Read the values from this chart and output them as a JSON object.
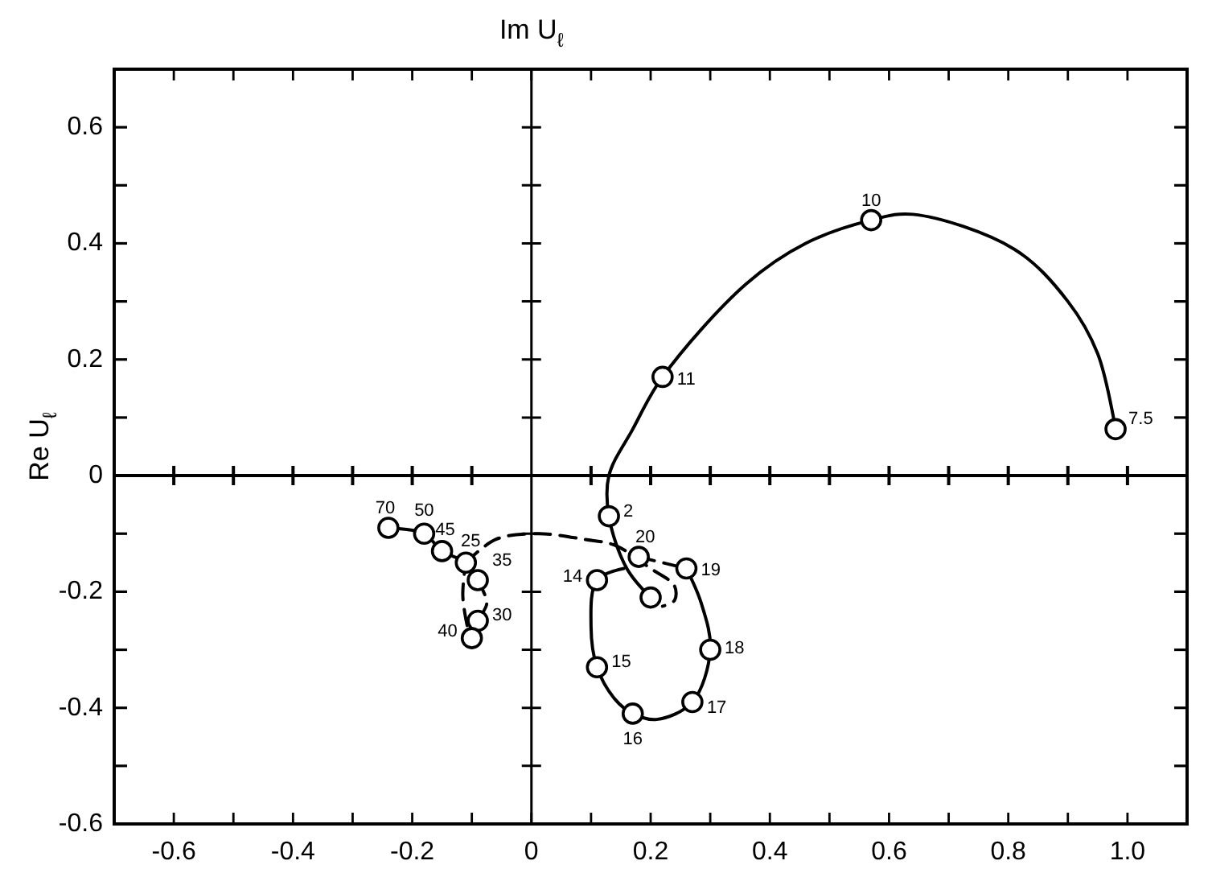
{
  "chart_data": {
    "type": "line",
    "title": "Im U$_{ℓ}$",
    "ylabel": "Re U$_{ℓ}$",
    "xlim": [
      -0.7,
      1.1
    ],
    "ylim": [
      -0.6,
      0.7
    ],
    "xticks": [
      -0.6,
      {
        "value": -0.5,
        "label": null
      },
      -0.4,
      {
        "value": -0.3,
        "label": null
      },
      -0.2,
      {
        "value": -0.1,
        "label": null
      },
      0,
      {
        "value": 0.1,
        "label": null
      },
      0.2,
      {
        "value": 0.3,
        "label": null
      },
      0.4,
      {
        "value": 0.5,
        "label": null
      },
      0.6,
      {
        "value": 0.7,
        "label": null
      },
      0.8,
      {
        "value": 0.9,
        "label": null
      },
      {
        "value": 1,
        "label": "1.0"
      }
    ],
    "yticks": [
      0.6,
      {
        "value": 0.5,
        "label": null
      },
      0.4,
      {
        "value": 0.3,
        "label": null
      },
      0.2,
      {
        "value": 0.1,
        "label": null
      },
      0,
      {
        "value": -0.1,
        "label": null
      },
      -0.2,
      {
        "value": -0.3,
        "label": null
      },
      -0.4,
      {
        "value": -0.5,
        "label": null
      },
      -0.6
    ],
    "ref_lines": [
      {
        "axis": "x",
        "value": 0
      },
      {
        "axis": "y",
        "value": 0
      }
    ],
    "series": [
      {
        "type": "line",
        "color": "#000000",
        "line_style": "solid",
        "marker": "none",
        "x": [
          0.98,
          0.95,
          0.9,
          0.81,
          0.64,
          0.57,
          0.46,
          0.36,
          0.22,
          0.17,
          0.13,
          0.13,
          0.16,
          0.2
        ],
        "values": [
          0.08,
          0.21,
          0.3,
          0.39,
          0.45,
          0.44,
          0.4,
          0.33,
          0.17,
          0.08,
          0,
          -0.07,
          -0.16,
          -0.21
        ]
      },
      {
        "type": "line",
        "color": "#000000",
        "line_style": "solid",
        "marker": "none",
        "x": [
          0.155,
          0.11,
          0.1,
          0.11,
          0.14,
          0.17,
          0.21,
          0.27,
          0.3,
          0.285,
          0.26
        ],
        "values": [
          -0.16,
          -0.18,
          -0.26,
          -0.33,
          -0.385,
          -0.41,
          -0.42,
          -0.39,
          -0.3,
          -0.22,
          -0.16
        ]
      },
      {
        "type": "line",
        "color": "#000000",
        "line_style": "dashed",
        "marker": "none",
        "x": [
          0.18,
          0.26
        ],
        "values": [
          -0.14,
          -0.16
        ]
      },
      {
        "type": "line",
        "color": "#000000",
        "line_style": "dashed",
        "marker": "none",
        "x": [
          -0.11,
          -0.06,
          0.01,
          0.09,
          0.14,
          0.2,
          0.24,
          0.24,
          0.22
        ],
        "values": [
          -0.15,
          -0.11,
          -0.1,
          -0.11,
          -0.12,
          -0.16,
          -0.19,
          -0.215,
          -0.225
        ]
      },
      {
        "type": "line",
        "color": "#000000",
        "line_style": "solid",
        "marker": "none",
        "x": [
          -0.24,
          -0.18,
          -0.15,
          -0.11,
          -0.09
        ],
        "values": [
          -0.09,
          -0.1,
          -0.13,
          -0.15,
          -0.18
        ]
      },
      {
        "type": "line",
        "color": "#000000",
        "line_style": "dashed",
        "marker": "none",
        "x": [
          -0.09,
          -0.075,
          -0.09,
          -0.1,
          -0.115,
          -0.11
        ],
        "values": [
          -0.18,
          -0.22,
          -0.25,
          -0.28,
          -0.21,
          -0.15
        ]
      },
      {
        "type": "scatter",
        "color": "#000000",
        "marker": "circle",
        "x": [
          0.98,
          0.57,
          0.22,
          0.13,
          0.2,
          0.11,
          0.11,
          0.17,
          0.27,
          0.3,
          0.26,
          0.18,
          -0.11,
          -0.09,
          -0.09,
          -0.1,
          -0.15,
          -0.18,
          -0.24
        ],
        "values": [
          0.08,
          0.44,
          0.17,
          -0.07,
          -0.21,
          -0.18,
          -0.33,
          -0.41,
          -0.39,
          -0.3,
          -0.16,
          -0.14,
          -0.15,
          -0.18,
          -0.25,
          -0.28,
          -0.13,
          -0.1,
          -0.09
        ]
      }
    ],
    "annotations": [
      {
        "text": "7.5",
        "x": 0.98,
        "y": 0.08
      },
      {
        "text": "10",
        "x": 0.57,
        "y": 0.44
      },
      {
        "text": "11",
        "x": 0.22,
        "y": 0.17
      },
      {
        "text": "2",
        "x": 0.13,
        "y": -0.07
      },
      {
        "text": "14",
        "x": 0.11,
        "y": -0.18
      },
      {
        "text": "15",
        "x": 0.11,
        "y": -0.33
      },
      {
        "text": "16",
        "x": 0.17,
        "y": -0.41
      },
      {
        "text": "17",
        "x": 0.27,
        "y": -0.39
      },
      {
        "text": "18",
        "x": 0.3,
        "y": -0.3
      },
      {
        "text": "19",
        "x": 0.26,
        "y": -0.16
      },
      {
        "text": "20",
        "x": 0.18,
        "y": -0.14
      },
      {
        "text": "25",
        "x": -0.11,
        "y": -0.15
      },
      {
        "text": "35",
        "x": -0.09,
        "y": -0.18
      },
      {
        "text": "30",
        "x": -0.09,
        "y": -0.25
      },
      {
        "text": "40",
        "x": -0.1,
        "y": -0.28
      },
      {
        "text": "45",
        "x": -0.15,
        "y": -0.13
      },
      {
        "text": "50",
        "x": -0.18,
        "y": -0.1
      },
      {
        "text": "70",
        "x": -0.24,
        "y": -0.09
      }
    ]
  }
}
